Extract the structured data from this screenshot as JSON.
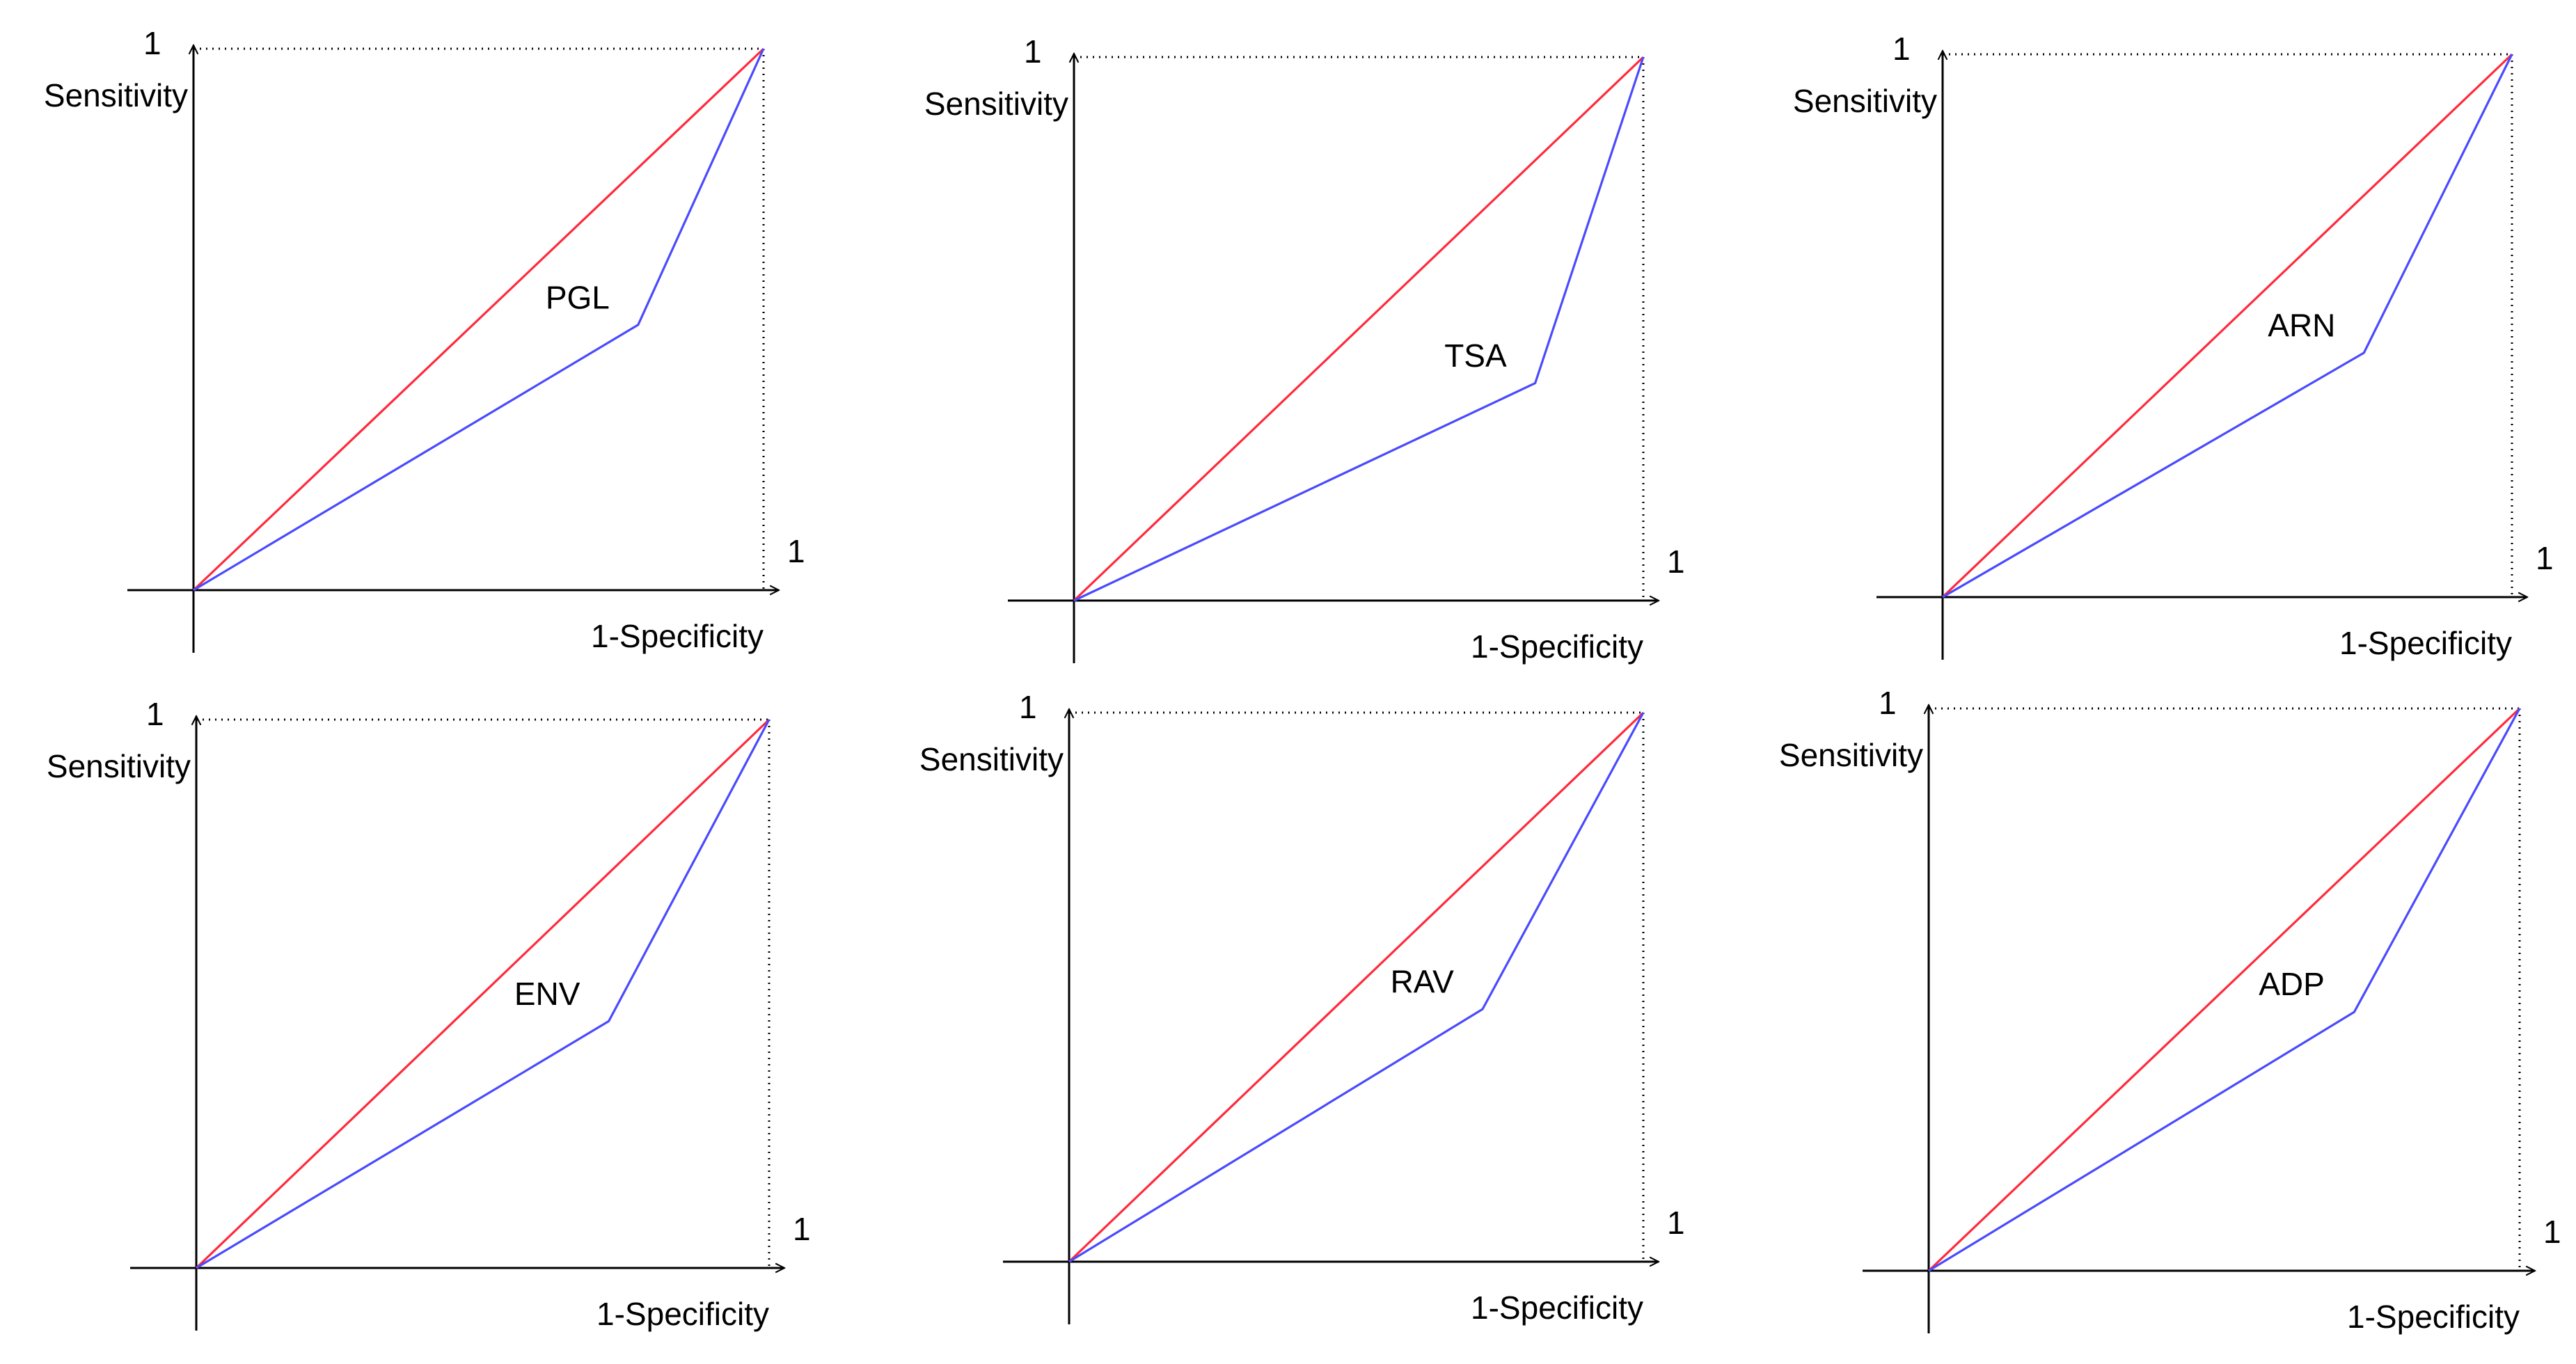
{
  "colors": {
    "axis": "#000000",
    "reference_line": "#ff2a3c",
    "roc_curve": "#4a4aff",
    "dotted_bound": "#000000"
  },
  "chart_data": [
    {
      "type": "line",
      "panel_label": "PGL",
      "xlabel": "1-Specificity",
      "ylabel": "Sensitivity",
      "x_tick_label": "1",
      "y_tick_label": "1",
      "xlim": [
        0,
        1
      ],
      "ylim": [
        0,
        1
      ],
      "series": [
        {
          "name": "reference",
          "x": [
            0,
            1
          ],
          "y": [
            0,
            1
          ]
        },
        {
          "name": "roc",
          "x": [
            0,
            0.78,
            1
          ],
          "y": [
            0,
            0.49,
            1
          ]
        }
      ]
    },
    {
      "type": "line",
      "panel_label": "TSA",
      "xlabel": "1-Specificity",
      "ylabel": "Sensitivity",
      "x_tick_label": "1",
      "y_tick_label": "1",
      "xlim": [
        0,
        1
      ],
      "ylim": [
        0,
        1
      ],
      "series": [
        {
          "name": "reference",
          "x": [
            0,
            1
          ],
          "y": [
            0,
            1
          ]
        },
        {
          "name": "roc",
          "x": [
            0,
            0.81,
            1
          ],
          "y": [
            0,
            0.4,
            1
          ]
        }
      ]
    },
    {
      "type": "line",
      "panel_label": "ARN",
      "xlabel": "1-Specificity",
      "ylabel": "Sensitivity",
      "x_tick_label": "1",
      "y_tick_label": "1",
      "xlim": [
        0,
        1
      ],
      "ylim": [
        0,
        1
      ],
      "series": [
        {
          "name": "reference",
          "x": [
            0,
            1
          ],
          "y": [
            0,
            1
          ]
        },
        {
          "name": "roc",
          "x": [
            0,
            0.74,
            1
          ],
          "y": [
            0,
            0.45,
            1
          ]
        }
      ]
    },
    {
      "type": "line",
      "panel_label": "ENV",
      "xlabel": "1-Specificity",
      "ylabel": "Sensitivity",
      "x_tick_label": "1",
      "y_tick_label": "1",
      "xlim": [
        0,
        1
      ],
      "ylim": [
        0,
        1
      ],
      "series": [
        {
          "name": "reference",
          "x": [
            0,
            1
          ],
          "y": [
            0,
            1
          ]
        },
        {
          "name": "roc",
          "x": [
            0,
            0.72,
            1
          ],
          "y": [
            0,
            0.45,
            1
          ]
        }
      ]
    },
    {
      "type": "line",
      "panel_label": "RAV",
      "xlabel": "1-Specificity",
      "ylabel": "Sensitivity",
      "x_tick_label": "1",
      "y_tick_label": "1",
      "xlim": [
        0,
        1
      ],
      "ylim": [
        0,
        1
      ],
      "series": [
        {
          "name": "reference",
          "x": [
            0,
            1
          ],
          "y": [
            0,
            1
          ]
        },
        {
          "name": "roc",
          "x": [
            0,
            0.72,
            1
          ],
          "y": [
            0,
            0.46,
            1
          ]
        }
      ]
    },
    {
      "type": "line",
      "panel_label": "ADP",
      "xlabel": "1-Specificity",
      "ylabel": "Sensitivity",
      "x_tick_label": "1",
      "y_tick_label": "1",
      "xlim": [
        0,
        1
      ],
      "ylim": [
        0,
        1
      ],
      "series": [
        {
          "name": "reference",
          "x": [
            0,
            1
          ],
          "y": [
            0,
            1
          ]
        },
        {
          "name": "roc",
          "x": [
            0,
            0.72,
            1
          ],
          "y": [
            0,
            0.46,
            1
          ]
        }
      ]
    }
  ]
}
